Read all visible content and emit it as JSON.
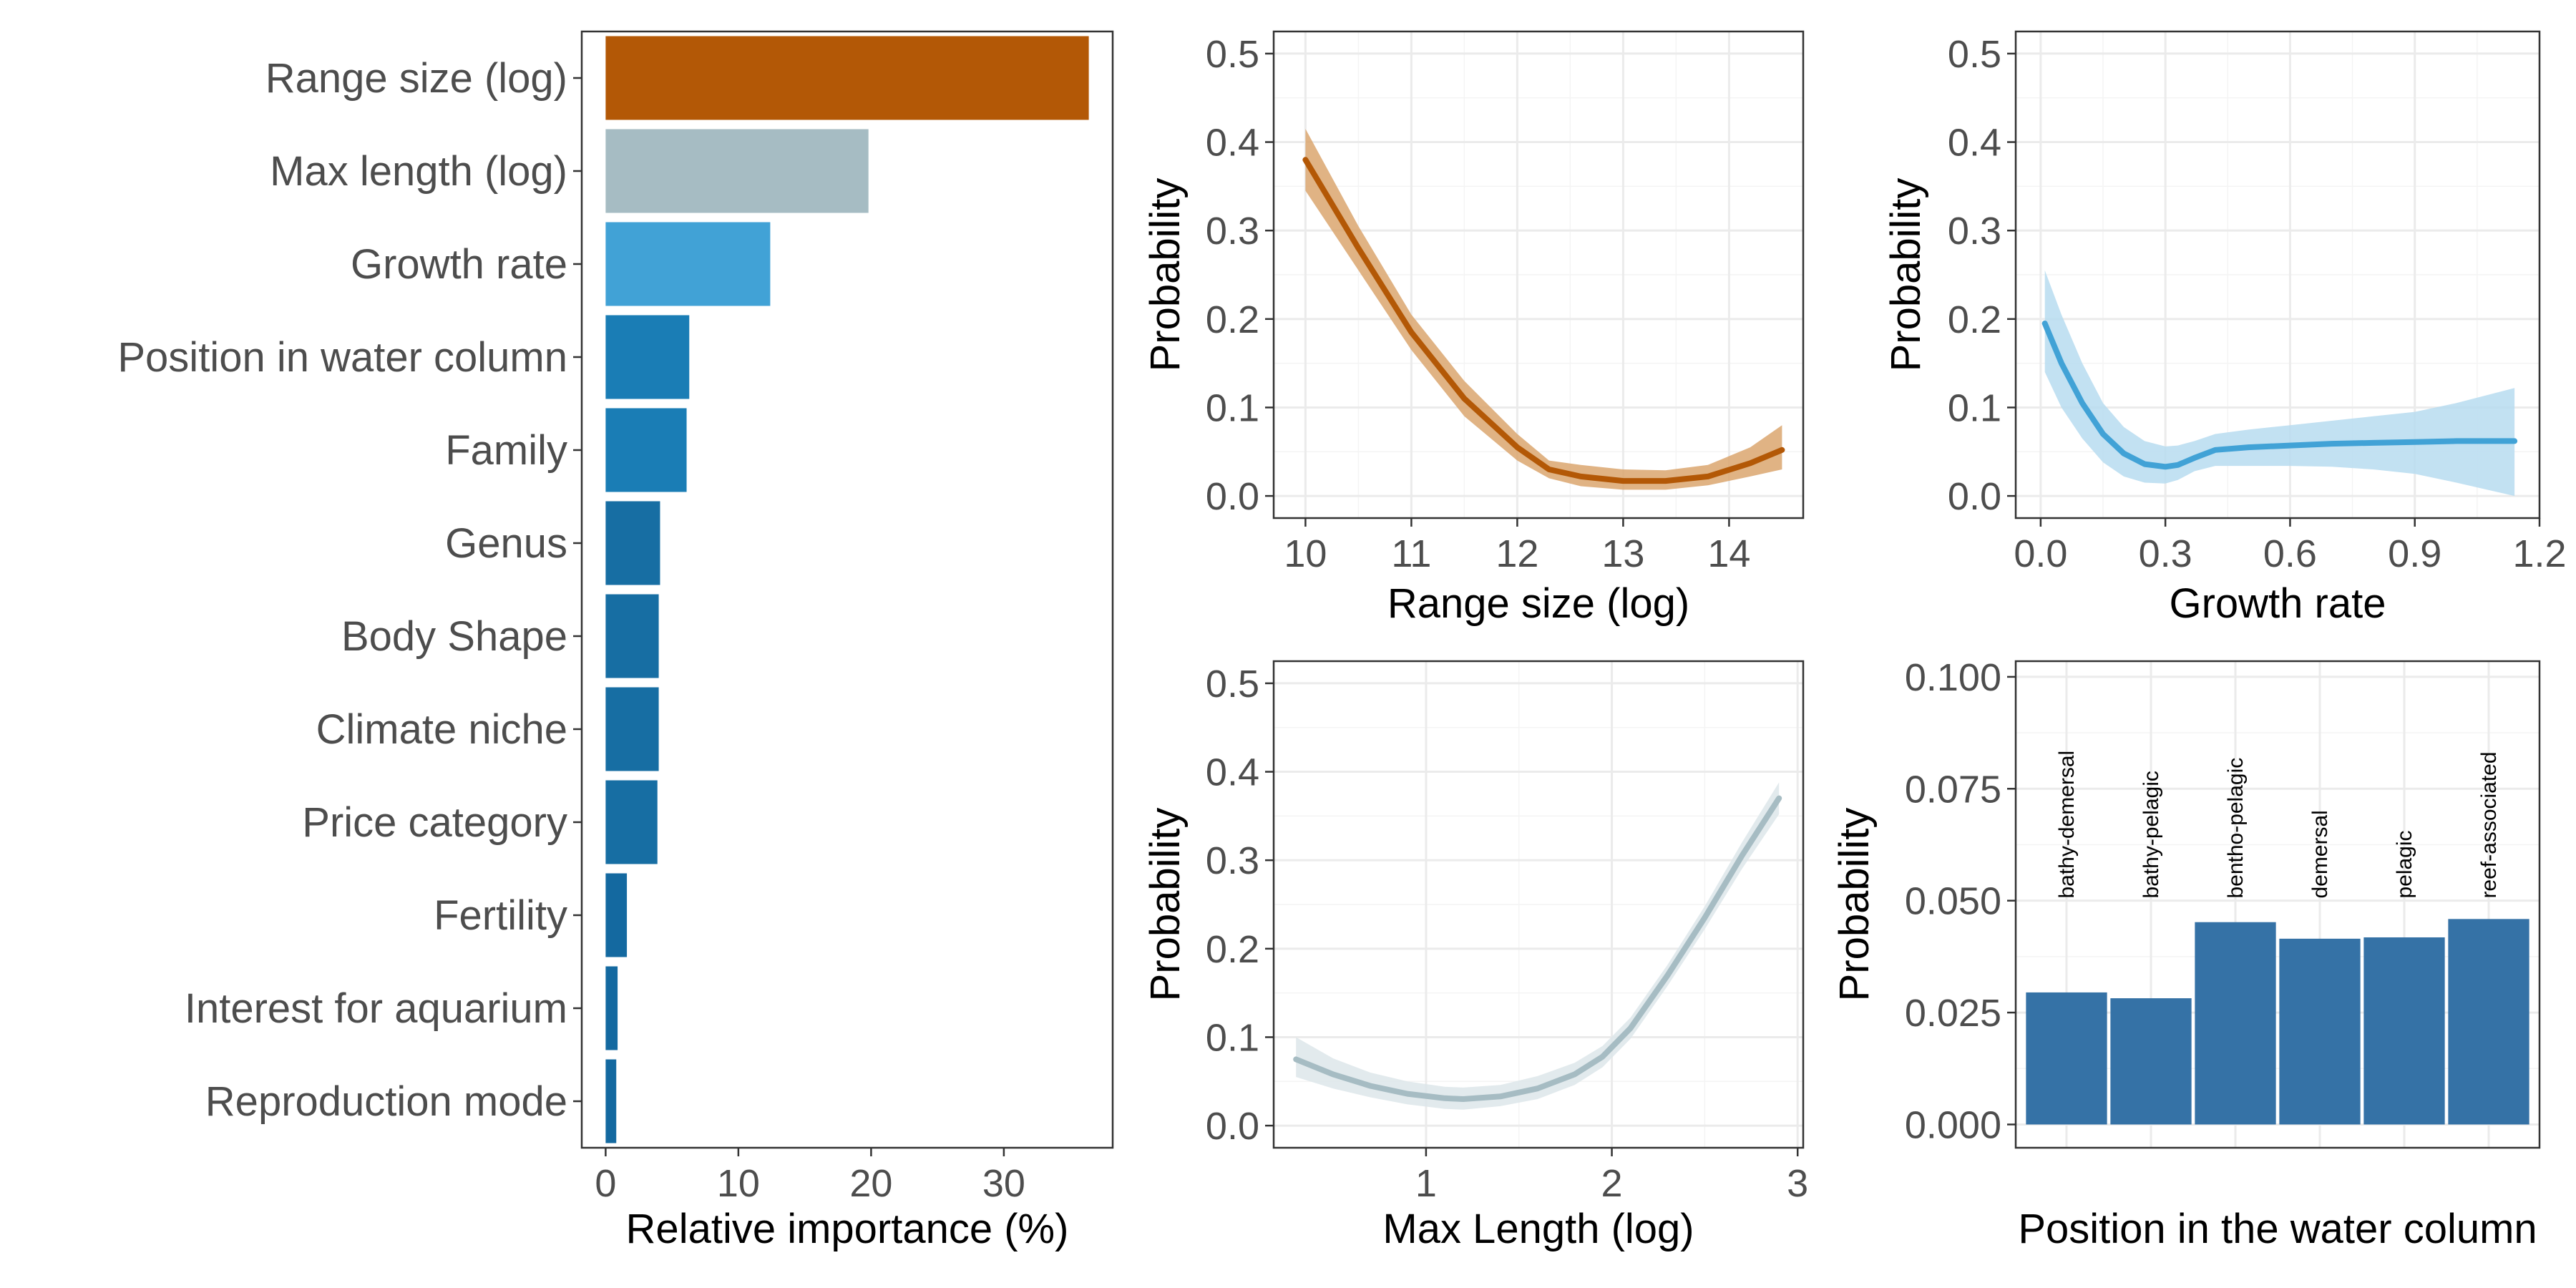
{
  "chart_data": [
    {
      "type": "bar",
      "orientation": "horizontal",
      "categories": [
        "Range size (log)",
        "Max length (log)",
        "Growth rate",
        "Position in water column",
        "Family",
        "Genus",
        "Body Shape",
        "Climate niche",
        "Price category",
        "Fertility",
        "Interest for aquarium",
        "Reproduction mode"
      ],
      "values": [
        36.4,
        19.8,
        12.4,
        6.3,
        6.1,
        4.1,
        4.0,
        4.0,
        3.9,
        1.6,
        0.9,
        0.8
      ],
      "colors": [
        "#b35806",
        "#a6bcc3",
        "#41a2d6",
        "#1a7db5",
        "#1a7db5",
        "#176ea3",
        "#176ea3",
        "#176ea3",
        "#176ea3",
        "#1469a0",
        "#1469a0",
        "#1469a0"
      ],
      "xlabel": "Relative importance (%)",
      "ylabel": "",
      "xlim": [
        -1.8,
        38.2
      ],
      "xticks": [
        0,
        10,
        20,
        30
      ],
      "grid": false
    },
    {
      "type": "line",
      "xlabel": "Range size (log)",
      "ylabel": "Probability",
      "xlim": [
        9.7,
        14.7
      ],
      "ylim": [
        -0.025,
        0.525
      ],
      "xticks": [
        10,
        11,
        12,
        13,
        14
      ],
      "yticks": [
        0.0,
        0.1,
        0.2,
        0.3,
        0.4,
        0.5
      ],
      "ytick_labels": [
        "0.0",
        "0.1",
        "0.2",
        "0.3",
        "0.4",
        "0.5"
      ],
      "color": "#b35806",
      "band_color": "#daa66f",
      "series": [
        {
          "x": [
            10.0,
            10.5,
            11.0,
            11.5,
            12.0,
            12.3,
            12.6,
            13.0,
            13.4,
            13.8,
            14.2,
            14.5
          ],
          "y": [
            0.38,
            0.28,
            0.185,
            0.11,
            0.055,
            0.03,
            0.022,
            0.017,
            0.017,
            0.022,
            0.037,
            0.052
          ],
          "lower": [
            0.345,
            0.255,
            0.165,
            0.09,
            0.04,
            0.02,
            0.011,
            0.007,
            0.007,
            0.012,
            0.022,
            0.03
          ],
          "upper": [
            0.415,
            0.305,
            0.205,
            0.13,
            0.07,
            0.04,
            0.035,
            0.03,
            0.029,
            0.035,
            0.055,
            0.08
          ]
        }
      ],
      "grid": true
    },
    {
      "type": "line",
      "xlabel": "Growth rate",
      "ylabel": "Probability",
      "xlim": [
        -0.06,
        1.2
      ],
      "ylim": [
        -0.025,
        0.525
      ],
      "xticks": [
        0.0,
        0.3,
        0.6,
        0.9,
        1.2
      ],
      "xtick_labels": [
        "0.0",
        "0.3",
        "0.6",
        "0.9",
        "1.2"
      ],
      "yticks": [
        0.0,
        0.1,
        0.2,
        0.3,
        0.4,
        0.5
      ],
      "ytick_labels": [
        "0.0",
        "0.1",
        "0.2",
        "0.3",
        "0.4",
        "0.5"
      ],
      "color": "#41a2d6",
      "band_color": "#b7dcf0",
      "series": [
        {
          "x": [
            0.01,
            0.05,
            0.1,
            0.15,
            0.2,
            0.25,
            0.3,
            0.33,
            0.37,
            0.42,
            0.5,
            0.6,
            0.7,
            0.8,
            0.9,
            1.0,
            1.14
          ],
          "y": [
            0.195,
            0.15,
            0.105,
            0.07,
            0.048,
            0.036,
            0.033,
            0.035,
            0.043,
            0.052,
            0.055,
            0.057,
            0.059,
            0.06,
            0.061,
            0.062,
            0.062
          ],
          "lower": [
            0.14,
            0.1,
            0.065,
            0.038,
            0.022,
            0.015,
            0.014,
            0.018,
            0.028,
            0.034,
            0.034,
            0.034,
            0.033,
            0.03,
            0.025,
            0.015,
            0.0
          ],
          "upper": [
            0.255,
            0.205,
            0.15,
            0.105,
            0.078,
            0.062,
            0.056,
            0.057,
            0.062,
            0.07,
            0.075,
            0.08,
            0.085,
            0.09,
            0.095,
            0.105,
            0.122
          ]
        }
      ],
      "grid": true
    },
    {
      "type": "line",
      "xlabel": "Max Length (log)",
      "ylabel": "Probability",
      "xlim": [
        0.18,
        3.03
      ],
      "ylim": [
        -0.025,
        0.525
      ],
      "xticks": [
        1,
        2,
        3
      ],
      "yticks": [
        0.0,
        0.1,
        0.2,
        0.3,
        0.4,
        0.5
      ],
      "ytick_labels": [
        "0.0",
        "0.1",
        "0.2",
        "0.3",
        "0.4",
        "0.5"
      ],
      "color": "#a6bcc3",
      "band_color": "#dde6ea",
      "series": [
        {
          "x": [
            0.3,
            0.5,
            0.7,
            0.9,
            1.1,
            1.2,
            1.4,
            1.6,
            1.8,
            1.95,
            2.1,
            2.3,
            2.5,
            2.7,
            2.9
          ],
          "y": [
            0.075,
            0.058,
            0.045,
            0.036,
            0.031,
            0.03,
            0.033,
            0.042,
            0.058,
            0.078,
            0.11,
            0.17,
            0.235,
            0.305,
            0.37
          ],
          "lower": [
            0.055,
            0.042,
            0.032,
            0.024,
            0.019,
            0.018,
            0.022,
            0.03,
            0.046,
            0.066,
            0.098,
            0.158,
            0.222,
            0.29,
            0.352
          ],
          "upper": [
            0.1,
            0.076,
            0.06,
            0.05,
            0.044,
            0.043,
            0.046,
            0.056,
            0.071,
            0.09,
            0.122,
            0.182,
            0.248,
            0.32,
            0.388
          ]
        }
      ],
      "grid": true
    },
    {
      "type": "bar",
      "categories": [
        "bathy-demersal",
        "bathy-pelagic",
        "bentho-pelagic",
        "demersal",
        "pelagic",
        "reef-associated"
      ],
      "values": [
        0.0295,
        0.0282,
        0.0452,
        0.0415,
        0.0418,
        0.0459
      ],
      "color": "#3572a6",
      "xlabel": "Position in the water column",
      "ylabel": "Probability",
      "ylim": [
        -0.0052,
        0.1035
      ],
      "yticks": [
        0.0,
        0.025,
        0.05,
        0.075,
        0.1
      ],
      "ytick_labels": [
        "0.000",
        "0.025",
        "0.050",
        "0.075",
        "0.100"
      ],
      "grid": true
    }
  ]
}
